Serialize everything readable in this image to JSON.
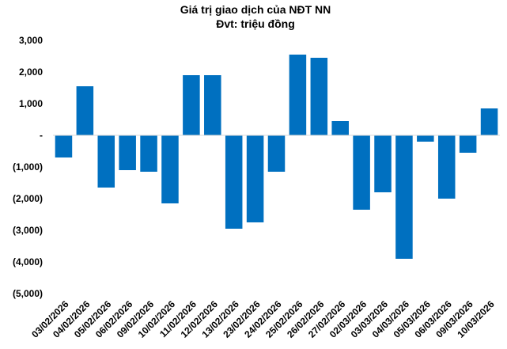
{
  "chart_data": {
    "type": "bar",
    "title": "Giá trị giao dịch của NĐT NN",
    "subtitle": "Đvt: triệu đồng",
    "categories": [
      "03/02/2026",
      "04/02/2026",
      "05/02/2026",
      "06/02/2026",
      "09/02/2026",
      "10/02/2026",
      "11/02/2026",
      "12/02/2026",
      "13/02/2026",
      "23/02/2026",
      "24/02/2026",
      "25/02/2026",
      "26/02/2026",
      "27/02/2026",
      "02/03/2026",
      "03/03/2026",
      "04/03/2026",
      "05/03/2026",
      "06/03/2026",
      "09/03/2026",
      "10/03/2026"
    ],
    "values": [
      -700,
      1550,
      -1650,
      -1100,
      -1150,
      -2150,
      1900,
      1900,
      -2950,
      -2750,
      -1150,
      2550,
      2450,
      450,
      -2350,
      -1800,
      -3900,
      -200,
      -2000,
      -550,
      850
    ],
    "yticks": [
      3000,
      2000,
      1000,
      0,
      -1000,
      -2000,
      -3000,
      -4000,
      -5000
    ],
    "ytick_labels": [
      "3,000",
      "2,000",
      "1,000",
      "-",
      "(1,000)",
      "(2,000)",
      "(3,000)",
      "(4,000)",
      "(5,000)"
    ],
    "ylim": [
      -5000,
      3000
    ],
    "grid": false,
    "legend": "none",
    "bar_color": "#0070C0"
  }
}
